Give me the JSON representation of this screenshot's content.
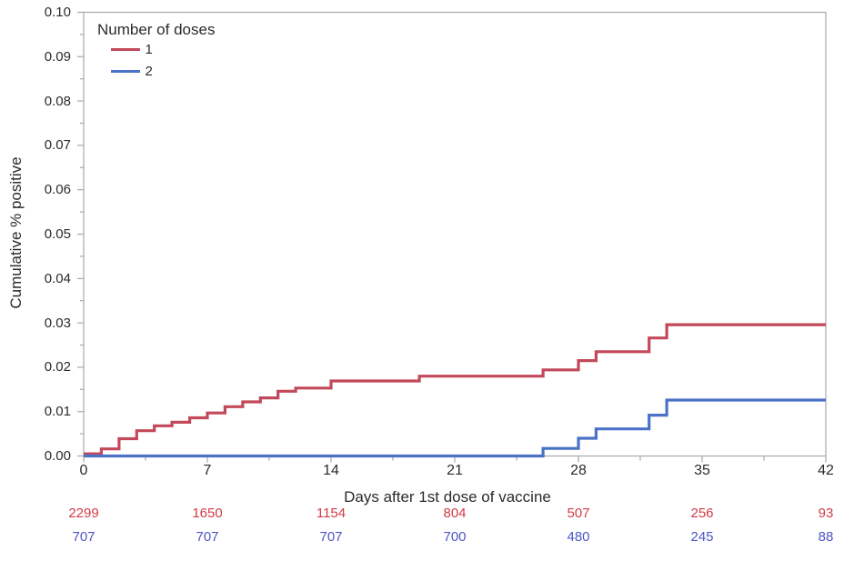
{
  "styles": {
    "frame_color": "#a9a9a9",
    "text_color": "#2b2b2b"
  },
  "chart_data": {
    "type": "line",
    "subtype": "step-after",
    "title": "",
    "xlabel": "Days after 1st dose of vaccine",
    "ylabel": "Cumulative % positive",
    "xlim": [
      0,
      42
    ],
    "ylim": [
      0,
      0.1
    ],
    "grid": "off",
    "x_major_ticks": [
      0,
      7,
      14,
      21,
      28,
      35,
      42
    ],
    "x_minor_ticks": [
      3.5,
      10.5,
      17.5,
      24.5,
      31.5,
      38.5
    ],
    "y_major_tick_labels": [
      "0.00",
      "0.01",
      "0.02",
      "0.03",
      "0.04",
      "0.05",
      "0.06",
      "0.07",
      "0.08",
      "0.09",
      "0.10"
    ],
    "y_minor_ticks": [
      0.005,
      0.015,
      0.025,
      0.035,
      0.045,
      0.055,
      0.065,
      0.075,
      0.085,
      0.095
    ],
    "legend": {
      "title": "Number of doses",
      "position": "top-left-inside"
    },
    "series": [
      {
        "name": "1",
        "color": "#c2495a",
        "step_points": [
          [
            0,
            0.0005
          ],
          [
            1,
            0.0016
          ],
          [
            2,
            0.0039
          ],
          [
            3,
            0.0057
          ],
          [
            4,
            0.0068
          ],
          [
            5,
            0.0076
          ],
          [
            6,
            0.0086
          ],
          [
            7,
            0.0097
          ],
          [
            8,
            0.0111
          ],
          [
            9,
            0.0122
          ],
          [
            10,
            0.0131
          ],
          [
            11,
            0.0146
          ],
          [
            12,
            0.0153
          ],
          [
            14,
            0.0169
          ],
          [
            19,
            0.018
          ],
          [
            26,
            0.0194
          ],
          [
            28,
            0.0215
          ],
          [
            29,
            0.0235
          ],
          [
            32,
            0.0266
          ],
          [
            33,
            0.0296
          ]
        ]
      },
      {
        "name": "2",
        "color": "#4a72c6",
        "step_points": [
          [
            0,
            0.0
          ],
          [
            26,
            0.0017
          ],
          [
            28,
            0.004
          ],
          [
            29,
            0.0061
          ],
          [
            32,
            0.0092
          ],
          [
            33,
            0.0126
          ]
        ]
      }
    ],
    "at_risk_table": {
      "days": [
        0,
        7,
        14,
        21,
        28,
        35,
        42
      ],
      "rows": [
        {
          "series": "1",
          "color": "#d23b45",
          "values": [
            "2299",
            "1650",
            "1154",
            "804",
            "507",
            "256",
            "93"
          ]
        },
        {
          "series": "2",
          "color": "#4d55c6",
          "values": [
            "707",
            "707",
            "707",
            "700",
            "480",
            "245",
            "88"
          ]
        }
      ]
    }
  }
}
